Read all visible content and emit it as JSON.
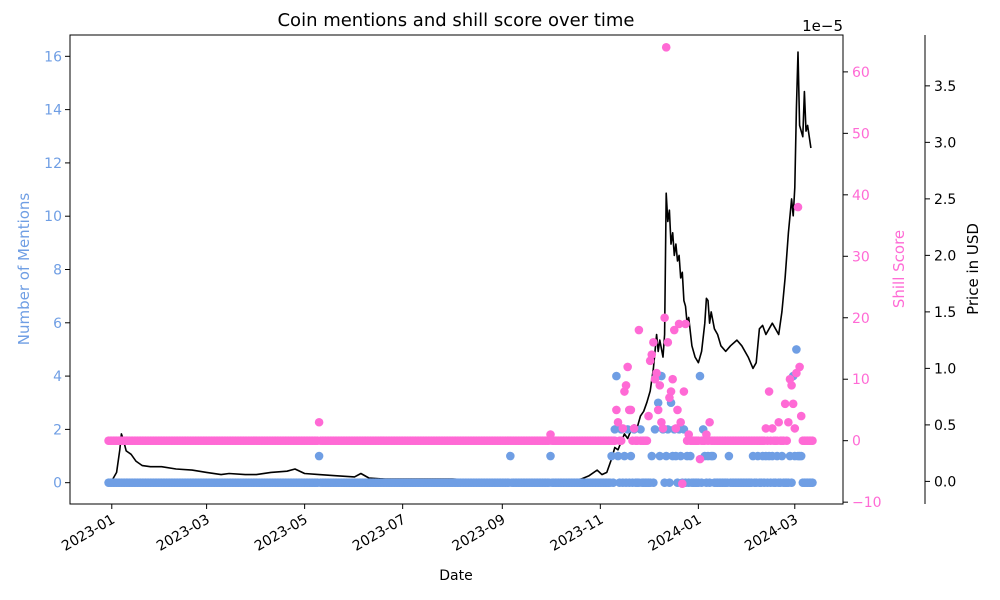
{
  "chart_data": {
    "type": "scatter",
    "title": "Coin mentions and shill score over time",
    "xlabel": "Date",
    "x_ticks": [
      "2023-01",
      "2023-03",
      "2023-05",
      "2023-07",
      "2023-09",
      "2023-11",
      "2024-01",
      "2024-03"
    ],
    "xlim": [
      "2022-12-06",
      "2024-03-31"
    ],
    "axes": {
      "mentions": {
        "label": "Number of Mentions",
        "color": "#6f9ee4",
        "ylim": [
          -0.8,
          16.8
        ],
        "ticks": [
          "0",
          "2",
          "4",
          "6",
          "8",
          "10",
          "12",
          "14",
          "16"
        ]
      },
      "shill": {
        "label": "Shill Score",
        "color": "#ff6ad5",
        "ylim": [
          -10.3,
          66.0
        ],
        "ticks": [
          "−10",
          "0",
          "10",
          "20",
          "30",
          "40",
          "50",
          "60"
        ]
      },
      "price": {
        "label": "Price in USD",
        "color": "#000000",
        "multiplier": "1e−5",
        "ylim": [
          -0.2,
          3.95
        ],
        "ticks": [
          "0.0",
          "0.5",
          "1.0",
          "1.5",
          "2.0",
          "2.5",
          "3.0",
          "3.5"
        ]
      }
    },
    "mentions_baseline_zero": {
      "start": "2022-12-30",
      "end": "2024-03-12"
    },
    "mentions_points": [
      [
        "2023-05-10",
        1
      ],
      [
        "2023-09-06",
        1
      ],
      [
        "2023-10-01",
        1
      ],
      [
        "2023-11-08",
        1
      ],
      [
        "2023-11-10",
        2
      ],
      [
        "2023-11-11",
        4
      ],
      [
        "2023-11-12",
        1
      ],
      [
        "2023-11-14",
        2
      ],
      [
        "2023-11-16",
        1
      ],
      [
        "2023-11-18",
        2
      ],
      [
        "2023-11-20",
        1
      ],
      [
        "2023-11-22",
        2
      ],
      [
        "2023-11-26",
        2
      ],
      [
        "2023-12-03",
        1
      ],
      [
        "2023-12-05",
        2
      ],
      [
        "2023-12-06",
        4
      ],
      [
        "2023-12-07",
        3
      ],
      [
        "2023-12-08",
        1
      ],
      [
        "2023-12-09",
        4
      ],
      [
        "2023-12-10",
        2
      ],
      [
        "2023-12-12",
        1
      ],
      [
        "2023-12-13",
        2
      ],
      [
        "2023-12-15",
        3
      ],
      [
        "2023-12-16",
        1
      ],
      [
        "2023-12-17",
        2
      ],
      [
        "2023-12-18",
        1
      ],
      [
        "2023-12-20",
        2
      ],
      [
        "2023-12-21",
        1
      ],
      [
        "2023-12-23",
        2
      ],
      [
        "2023-12-25",
        1
      ],
      [
        "2023-12-27",
        1
      ],
      [
        "2024-01-02",
        4
      ],
      [
        "2024-01-04",
        2
      ],
      [
        "2024-01-05",
        1
      ],
      [
        "2024-01-07",
        1
      ],
      [
        "2024-01-09",
        1
      ],
      [
        "2024-01-10",
        1
      ],
      [
        "2024-01-20",
        1
      ],
      [
        "2024-02-04",
        1
      ],
      [
        "2024-02-07",
        1
      ],
      [
        "2024-02-10",
        1
      ],
      [
        "2024-02-12",
        1
      ],
      [
        "2024-02-14",
        1
      ],
      [
        "2024-02-16",
        1
      ],
      [
        "2024-02-19",
        1
      ],
      [
        "2024-02-22",
        1
      ],
      [
        "2024-02-27",
        1
      ],
      [
        "2024-02-29",
        4
      ],
      [
        "2024-03-01",
        1
      ],
      [
        "2024-03-02",
        5
      ],
      [
        "2024-03-03",
        1
      ],
      [
        "2024-03-04",
        1
      ],
      [
        "2024-03-05",
        1
      ]
    ],
    "shill_baseline_zero": {
      "start": "2022-12-30",
      "end": "2024-03-12"
    },
    "shill_points": [
      [
        "2023-05-10",
        3
      ],
      [
        "2023-10-01",
        1
      ],
      [
        "2023-11-11",
        5
      ],
      [
        "2023-11-12",
        3
      ],
      [
        "2023-11-15",
        2
      ],
      [
        "2023-11-16",
        8
      ],
      [
        "2023-11-17",
        9
      ],
      [
        "2023-11-18",
        12
      ],
      [
        "2023-11-19",
        5
      ],
      [
        "2023-11-20",
        5
      ],
      [
        "2023-11-22",
        2
      ],
      [
        "2023-11-25",
        18
      ],
      [
        "2023-12-01",
        4
      ],
      [
        "2023-12-02",
        13
      ],
      [
        "2023-12-03",
        14
      ],
      [
        "2023-12-04",
        16
      ],
      [
        "2023-12-05",
        10
      ],
      [
        "2023-12-06",
        11
      ],
      [
        "2023-12-07",
        5
      ],
      [
        "2023-12-08",
        9
      ],
      [
        "2023-12-09",
        3
      ],
      [
        "2023-12-10",
        2
      ],
      [
        "2023-12-11",
        20
      ],
      [
        "2023-12-12",
        64
      ],
      [
        "2023-12-13",
        16
      ],
      [
        "2023-12-14",
        7
      ],
      [
        "2023-12-15",
        8
      ],
      [
        "2023-12-16",
        10
      ],
      [
        "2023-12-17",
        18
      ],
      [
        "2023-12-18",
        2
      ],
      [
        "2023-12-19",
        5
      ],
      [
        "2023-12-20",
        19
      ],
      [
        "2023-12-21",
        3
      ],
      [
        "2023-12-22",
        -7
      ],
      [
        "2023-12-23",
        8
      ],
      [
        "2023-12-24",
        19
      ],
      [
        "2023-12-26",
        1
      ],
      [
        "2024-01-02",
        -3
      ],
      [
        "2024-01-06",
        1
      ],
      [
        "2024-01-08",
        3
      ],
      [
        "2024-01-12",
        0
      ],
      [
        "2024-02-05",
        0
      ],
      [
        "2024-02-12",
        2
      ],
      [
        "2024-02-14",
        8
      ],
      [
        "2024-02-16",
        2
      ],
      [
        "2024-02-20",
        3
      ],
      [
        "2024-02-24",
        6
      ],
      [
        "2024-02-26",
        3
      ],
      [
        "2024-02-27",
        10
      ],
      [
        "2024-02-28",
        9
      ],
      [
        "2024-02-29",
        6
      ],
      [
        "2024-03-01",
        2
      ],
      [
        "2024-03-02",
        11
      ],
      [
        "2024-03-03",
        38
      ],
      [
        "2024-03-04",
        12
      ],
      [
        "2024-03-05",
        4
      ]
    ],
    "price_series": [
      [
        "2022-12-30",
        0.0
      ],
      [
        "2023-01-01",
        0.0
      ],
      [
        "2023-01-02",
        0.03
      ],
      [
        "2023-01-04",
        0.08
      ],
      [
        "2023-01-06",
        0.28
      ],
      [
        "2023-01-07",
        0.42
      ],
      [
        "2023-01-08",
        0.38
      ],
      [
        "2023-01-10",
        0.27
      ],
      [
        "2023-01-13",
        0.24
      ],
      [
        "2023-01-16",
        0.18
      ],
      [
        "2023-01-20",
        0.14
      ],
      [
        "2023-01-25",
        0.13
      ],
      [
        "2023-02-01",
        0.13
      ],
      [
        "2023-02-10",
        0.11
      ],
      [
        "2023-02-20",
        0.1
      ],
      [
        "2023-03-01",
        0.08
      ],
      [
        "2023-03-10",
        0.06
      ],
      [
        "2023-03-15",
        0.07
      ],
      [
        "2023-03-25",
        0.06
      ],
      [
        "2023-04-01",
        0.06
      ],
      [
        "2023-04-10",
        0.08
      ],
      [
        "2023-04-20",
        0.09
      ],
      [
        "2023-04-25",
        0.11
      ],
      [
        "2023-05-01",
        0.07
      ],
      [
        "2023-05-10",
        0.06
      ],
      [
        "2023-05-20",
        0.05
      ],
      [
        "2023-06-01",
        0.04
      ],
      [
        "2023-06-05",
        0.07
      ],
      [
        "2023-06-10",
        0.03
      ],
      [
        "2023-06-20",
        0.02
      ],
      [
        "2023-07-01",
        0.02
      ],
      [
        "2023-07-15",
        0.02
      ],
      [
        "2023-08-01",
        0.02
      ],
      [
        "2023-08-15",
        0.01
      ],
      [
        "2023-09-01",
        0.01
      ],
      [
        "2023-09-15",
        0.01
      ],
      [
        "2023-10-01",
        0.01
      ],
      [
        "2023-10-15",
        0.01
      ],
      [
        "2023-10-20",
        0.02
      ],
      [
        "2023-10-25",
        0.05
      ],
      [
        "2023-10-30",
        0.1
      ],
      [
        "2023-11-02",
        0.06
      ],
      [
        "2023-11-05",
        0.08
      ],
      [
        "2023-11-08",
        0.2
      ],
      [
        "2023-11-10",
        0.3
      ],
      [
        "2023-11-12",
        0.28
      ],
      [
        "2023-11-14",
        0.35
      ],
      [
        "2023-11-16",
        0.42
      ],
      [
        "2023-11-18",
        0.38
      ],
      [
        "2023-11-20",
        0.45
      ],
      [
        "2023-11-22",
        0.5
      ],
      [
        "2023-11-24",
        0.48
      ],
      [
        "2023-11-26",
        0.58
      ],
      [
        "2023-11-28",
        0.62
      ],
      [
        "2023-11-30",
        0.7
      ],
      [
        "2023-12-02",
        0.8
      ],
      [
        "2023-12-04",
        1.0
      ],
      [
        "2023-12-06",
        1.3
      ],
      [
        "2023-12-07",
        1.15
      ],
      [
        "2023-12-08",
        1.25
      ],
      [
        "2023-12-10",
        1.1
      ],
      [
        "2023-12-11",
        1.3
      ],
      [
        "2023-12-12",
        2.55
      ],
      [
        "2023-12-13",
        2.3
      ],
      [
        "2023-12-14",
        2.4
      ],
      [
        "2023-12-15",
        2.1
      ],
      [
        "2023-12-16",
        2.2
      ],
      [
        "2023-12-17",
        2.0
      ],
      [
        "2023-12-18",
        2.1
      ],
      [
        "2023-12-19",
        1.95
      ],
      [
        "2023-12-20",
        2.0
      ],
      [
        "2023-12-21",
        1.8
      ],
      [
        "2023-12-22",
        1.85
      ],
      [
        "2023-12-23",
        1.6
      ],
      [
        "2023-12-24",
        1.55
      ],
      [
        "2023-12-25",
        1.4
      ],
      [
        "2023-12-26",
        1.45
      ],
      [
        "2023-12-28",
        1.2
      ],
      [
        "2023-12-30",
        1.1
      ],
      [
        "2024-01-01",
        1.05
      ],
      [
        "2024-01-03",
        1.15
      ],
      [
        "2024-01-05",
        1.4
      ],
      [
        "2024-01-06",
        1.62
      ],
      [
        "2024-01-07",
        1.6
      ],
      [
        "2024-01-08",
        1.4
      ],
      [
        "2024-01-09",
        1.5
      ],
      [
        "2024-01-11",
        1.35
      ],
      [
        "2024-01-13",
        1.3
      ],
      [
        "2024-01-15",
        1.2
      ],
      [
        "2024-01-18",
        1.15
      ],
      [
        "2024-01-21",
        1.2
      ],
      [
        "2024-01-25",
        1.25
      ],
      [
        "2024-01-28",
        1.2
      ],
      [
        "2024-02-01",
        1.1
      ],
      [
        "2024-02-04",
        1.0
      ],
      [
        "2024-02-06",
        1.05
      ],
      [
        "2024-02-08",
        1.35
      ],
      [
        "2024-02-10",
        1.38
      ],
      [
        "2024-02-12",
        1.3
      ],
      [
        "2024-02-14",
        1.35
      ],
      [
        "2024-02-16",
        1.4
      ],
      [
        "2024-02-18",
        1.35
      ],
      [
        "2024-02-20",
        1.3
      ],
      [
        "2024-02-22",
        1.5
      ],
      [
        "2024-02-24",
        1.8
      ],
      [
        "2024-02-26",
        2.2
      ],
      [
        "2024-02-28",
        2.5
      ],
      [
        "2024-02-29",
        2.35
      ],
      [
        "2024-03-01",
        2.6
      ],
      [
        "2024-03-02",
        3.3
      ],
      [
        "2024-03-03",
        3.8
      ],
      [
        "2024-03-04",
        3.15
      ],
      [
        "2024-03-06",
        3.05
      ],
      [
        "2024-03-07",
        3.45
      ],
      [
        "2024-03-08",
        3.1
      ],
      [
        "2024-03-09",
        3.15
      ],
      [
        "2024-03-11",
        2.95
      ]
    ]
  }
}
